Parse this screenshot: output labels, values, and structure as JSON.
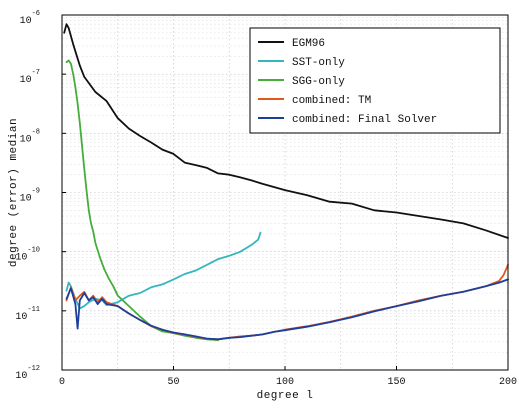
{
  "chart_data": {
    "type": "line",
    "title": "",
    "xlabel": "degree l",
    "ylabel": "degree (error) median",
    "xlim": [
      0,
      200
    ],
    "ylim_exponent": [
      -12,
      -6
    ],
    "y_scale": "log",
    "grid": true,
    "legend_position": "top-right",
    "x_ticks": [
      "0",
      "50",
      "100",
      "150",
      "200"
    ],
    "y_ticks": [
      {
        "base": "10",
        "exp": "-12",
        "value": -12
      },
      {
        "base": "10",
        "exp": "-11",
        "value": -11
      },
      {
        "base": "10",
        "exp": "-10",
        "value": -10
      },
      {
        "base": "10",
        "exp": "-9",
        "value": -9
      },
      {
        "base": "10",
        "exp": "-8",
        "value": -8
      },
      {
        "base": "10",
        "exp": "-7",
        "value": -7
      },
      {
        "base": "10",
        "exp": "-6",
        "value": -6
      }
    ],
    "series": [
      {
        "name": "EGM96",
        "color": "#111111",
        "x": [
          1,
          2,
          3,
          5,
          8,
          10,
          15,
          20,
          25,
          30,
          35,
          40,
          45,
          50,
          55,
          60,
          65,
          70,
          75,
          80,
          85,
          90,
          100,
          110,
          120,
          130,
          140,
          150,
          160,
          170,
          180,
          190,
          200
        ],
        "y": [
          5e-07,
          7e-07,
          6e-07,
          3.2e-07,
          1.4e-07,
          9e-08,
          5e-08,
          3.5e-08,
          1.8e-08,
          1.2e-08,
          9e-09,
          7e-09,
          5.3e-09,
          4.5e-09,
          3.2e-09,
          2.9e-09,
          2.6e-09,
          2.1e-09,
          2e-09,
          1.8e-09,
          1.6e-09,
          1.4e-09,
          1.1e-09,
          9e-10,
          7e-10,
          6.5e-10,
          5e-10,
          4.6e-10,
          4e-10,
          3.5e-10,
          3e-10,
          2.3e-10,
          1.7e-10
        ]
      },
      {
        "name": "SST-only",
        "color": "#34b6bd",
        "x": [
          2,
          3,
          4,
          5,
          6,
          8,
          10,
          12,
          15,
          18,
          20,
          25,
          30,
          35,
          40,
          45,
          50,
          55,
          60,
          65,
          70,
          75,
          80,
          85,
          88,
          89
        ],
        "y": [
          2.2e-11,
          3e-11,
          2.6e-11,
          2e-11,
          1.6e-11,
          1.1e-11,
          1.2e-11,
          1.4e-11,
          1.6e-11,
          1.5e-11,
          1.25e-11,
          1.4e-11,
          1.8e-11,
          2e-11,
          2.5e-11,
          2.8e-11,
          3.4e-11,
          4.2e-11,
          4.8e-11,
          6e-11,
          7.5e-11,
          8.5e-11,
          1e-10,
          1.3e-10,
          1.6e-10,
          2.1e-10
        ]
      },
      {
        "name": "SGG-only",
        "color": "#45ad3a",
        "x": [
          2,
          3,
          4,
          5,
          6,
          7,
          8,
          9,
          10,
          11,
          12,
          13,
          14,
          15,
          17,
          19,
          21,
          23,
          25,
          30,
          35,
          40,
          45,
          50,
          55,
          60,
          65,
          70
        ],
        "y": [
          1.6e-07,
          1.7e-07,
          1.5e-07,
          1e-07,
          6e-08,
          3.2e-08,
          1.5e-08,
          6e-09,
          2.5e-09,
          1.1e-09,
          5e-10,
          3e-10,
          2.2e-10,
          1.4e-10,
          8e-11,
          5e-11,
          3.5e-11,
          2.6e-11,
          1.8e-11,
          1.2e-11,
          8e-12,
          5.5e-12,
          4.5e-12,
          4.2e-12,
          3.8e-12,
          3.5e-12,
          3.3e-12,
          3.2e-12
        ]
      },
      {
        "name": "combined: TM",
        "color": "#e3561c",
        "x": [
          2,
          4,
          6,
          8,
          10,
          12,
          14,
          16,
          18,
          20,
          25,
          30,
          35,
          40,
          45,
          50,
          55,
          60,
          65,
          70,
          75,
          80,
          85,
          90,
          95,
          100,
          110,
          120,
          130,
          140,
          150,
          160,
          170,
          180,
          190,
          196,
          198,
          200
        ],
        "y": [
          1.5e-11,
          2.5e-11,
          1.5e-11,
          1.8e-11,
          2.1e-11,
          1.5e-11,
          1.8e-11,
          1.4e-11,
          1.7e-11,
          1.4e-11,
          1.2e-11,
          9e-12,
          7e-12,
          5.5e-12,
          4.8e-12,
          4.2e-12,
          4e-12,
          3.6e-12,
          3.4e-12,
          3.3e-12,
          3.5e-12,
          3.7e-12,
          3.8e-12,
          4e-12,
          4.4e-12,
          4.8e-12,
          5.5e-12,
          6.5e-12,
          8e-12,
          1e-11,
          1.2e-11,
          1.5e-11,
          1.8e-11,
          2.1e-11,
          2.6e-11,
          3.2e-11,
          4e-11,
          6e-11
        ]
      },
      {
        "name": "combined: Final Solver",
        "color": "#1d3f9c",
        "x": [
          2,
          4,
          6,
          7,
          8,
          10,
          12,
          14,
          16,
          18,
          20,
          25,
          30,
          35,
          40,
          45,
          50,
          55,
          60,
          65,
          70,
          75,
          80,
          85,
          90,
          95,
          100,
          110,
          120,
          130,
          140,
          150,
          160,
          170,
          180,
          190,
          196,
          200
        ],
        "y": [
          1.6e-11,
          2.4e-11,
          1.3e-11,
          5e-12,
          1.5e-11,
          2e-11,
          1.5e-11,
          1.7e-11,
          1.3e-11,
          1.6e-11,
          1.3e-11,
          1.2e-11,
          9e-12,
          7e-12,
          5.6e-12,
          4.8e-12,
          4.3e-12,
          4e-12,
          3.7e-12,
          3.4e-12,
          3.3e-12,
          3.5e-12,
          3.6e-12,
          3.8e-12,
          4e-12,
          4.4e-12,
          4.7e-12,
          5.4e-12,
          6.4e-12,
          7.8e-12,
          9.8e-12,
          1.2e-11,
          1.45e-11,
          1.8e-11,
          2.1e-11,
          2.6e-11,
          3e-11,
          3.4e-11
        ]
      }
    ]
  }
}
